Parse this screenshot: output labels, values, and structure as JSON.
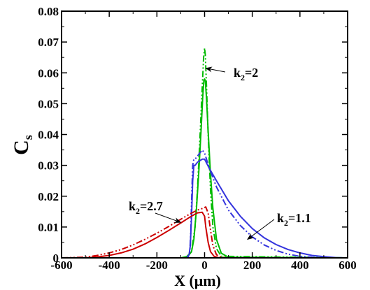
{
  "chart_data": {
    "type": "line",
    "title": "",
    "xlabel": "X (μm)",
    "ylabel": "C",
    "ylabel_subscript": "s",
    "xlim": [
      -600,
      600
    ],
    "ylim": [
      0,
      0.08
    ],
    "x_ticks": [
      -600,
      -400,
      -200,
      0,
      200,
      400,
      600
    ],
    "y_ticks": [
      0,
      0.01,
      0.02,
      0.03,
      0.04,
      0.05,
      0.06,
      0.07,
      0.08
    ],
    "x_tick_labels": [
      "-600",
      "-400",
      "-200",
      "0",
      "200",
      "400",
      "600"
    ],
    "y_tick_labels": [
      "0",
      "0.01",
      "0.02",
      "0.03",
      "0.04",
      "0.05",
      "0.06",
      "0.07",
      "0.08"
    ],
    "grid": false,
    "legend": "none",
    "series": [
      {
        "color": "#00bb00",
        "dash": "solid",
        "group": "k2=2",
        "x": [
          -600,
          -100,
          -70,
          -55,
          -45,
          -35,
          -25,
          -15,
          -8,
          -3,
          0,
          3,
          8,
          15,
          25,
          35,
          50,
          70,
          100,
          600
        ],
        "y": [
          0,
          0,
          0.0005,
          0.002,
          0.006,
          0.015,
          0.027,
          0.041,
          0.052,
          0.0575,
          0.058,
          0.0575,
          0.052,
          0.041,
          0.027,
          0.016,
          0.006,
          0.0015,
          0.0002,
          0
        ]
      },
      {
        "color": "#00bb00",
        "dash": "dashdotdot",
        "group": "k2=2",
        "x": [
          -600,
          -80,
          -55,
          -40,
          -30,
          -20,
          -10,
          -4,
          0,
          3,
          8,
          15,
          25,
          35,
          50,
          70,
          600
        ],
        "y": [
          0,
          0,
          0.002,
          0.01,
          0.022,
          0.038,
          0.055,
          0.065,
          0.068,
          0.066,
          0.056,
          0.04,
          0.022,
          0.01,
          0.003,
          0.0005,
          0
        ]
      },
      {
        "color": "#3333dd",
        "dash": "solid",
        "group": "k2=1.1",
        "x": [
          -600,
          -75,
          -65,
          -60,
          -55,
          -50,
          -45,
          -40,
          -30,
          -20,
          -10,
          0,
          20,
          50,
          100,
          150,
          200,
          250,
          300,
          350,
          400,
          450,
          500,
          550,
          600
        ],
        "y": [
          0,
          0,
          0.001,
          0.004,
          0.013,
          0.025,
          0.03,
          0.03,
          0.031,
          0.0315,
          0.032,
          0.032,
          0.029,
          0.025,
          0.0185,
          0.0135,
          0.0095,
          0.0065,
          0.0043,
          0.0027,
          0.0016,
          0.0008,
          0.0004,
          0.0001,
          0
        ]
      },
      {
        "color": "#3333dd",
        "dash": "dashdotdot",
        "group": "k2=1.1",
        "x": [
          -600,
          -70,
          -62,
          -58,
          -54,
          -50,
          -45,
          -40,
          -30,
          -20,
          -10,
          0,
          20,
          50,
          100,
          150,
          200,
          250,
          300,
          350,
          400,
          450,
          500,
          600
        ],
        "y": [
          0,
          0,
          0.002,
          0.008,
          0.02,
          0.03,
          0.032,
          0.032,
          0.033,
          0.034,
          0.035,
          0.034,
          0.029,
          0.023,
          0.0155,
          0.0105,
          0.0068,
          0.0042,
          0.0024,
          0.0012,
          0.0005,
          0.0002,
          0,
          0
        ]
      },
      {
        "color": "#cc0000",
        "dash": "solid",
        "group": "k2=2.7",
        "x": [
          -600,
          -500,
          -450,
          -400,
          -350,
          -300,
          -250,
          -200,
          -150,
          -100,
          -60,
          -30,
          -10,
          0,
          5,
          15,
          25,
          40,
          60,
          100,
          600
        ],
        "y": [
          0,
          0,
          0.0003,
          0.0008,
          0.0016,
          0.0028,
          0.0045,
          0.0066,
          0.0089,
          0.0113,
          0.0133,
          0.0146,
          0.0148,
          0.0135,
          0.01,
          0.005,
          0.002,
          0.0005,
          0,
          0,
          0
        ]
      },
      {
        "color": "#cc0000",
        "dash": "dashdotdot",
        "group": "k2=2.7",
        "x": [
          -600,
          -500,
          -450,
          -400,
          -350,
          -300,
          -250,
          -200,
          -150,
          -100,
          -60,
          -30,
          -10,
          5,
          15,
          25,
          35,
          50,
          70,
          100,
          600
        ],
        "y": [
          0,
          0.0002,
          0.0008,
          0.0016,
          0.0027,
          0.0042,
          0.006,
          0.008,
          0.0102,
          0.0125,
          0.0143,
          0.0155,
          0.016,
          0.0165,
          0.0145,
          0.009,
          0.004,
          0.001,
          0.0002,
          0,
          0
        ]
      }
    ],
    "annotations": [
      {
        "text": "k",
        "sub": "2",
        "rest": "=2",
        "name": "annotation-k2-2",
        "arrow_tip": [
          5,
          0.0615
        ]
      },
      {
        "text": "k",
        "sub": "2",
        "rest": "=2.7",
        "name": "annotation-k2-2-7",
        "arrow_tip": [
          -100,
          0.0115
        ]
      },
      {
        "text": "k",
        "sub": "2",
        "rest": "=1.1",
        "name": "annotation-k2-1-1",
        "arrow_tip": [
          180,
          0.006
        ]
      }
    ]
  }
}
